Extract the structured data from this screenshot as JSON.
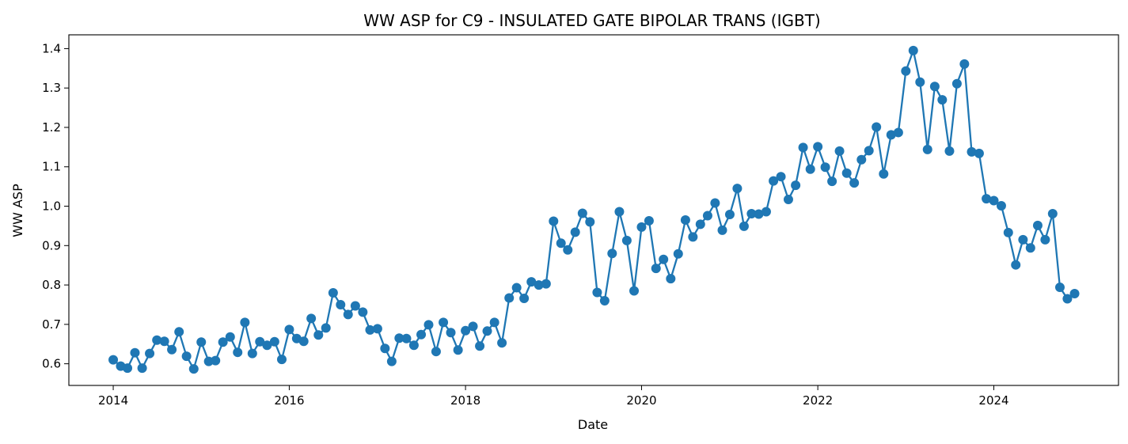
{
  "chart_data": {
    "type": "line",
    "title": "WW ASP for C9 - INSULATED GATE BIPOLAR TRANS (IGBT)",
    "xlabel": "Date",
    "ylabel": "WW ASP",
    "xlim": [
      "2013-07-01",
      "2025-06-01"
    ],
    "ylim": [
      0.545,
      1.435
    ],
    "x_ticks": [
      "2014",
      "2016",
      "2018",
      "2020",
      "2022",
      "2024"
    ],
    "y_ticks": [
      "0.6",
      "0.7",
      "0.8",
      "0.9",
      "1.0",
      "1.1",
      "1.2",
      "1.3",
      "1.4"
    ],
    "grid": false,
    "marker": "circle",
    "color": "#1f77b4",
    "series": [
      {
        "x": [
          "2014-01",
          "2014-02",
          "2014-03",
          "2014-04",
          "2014-05",
          "2014-06",
          "2014-07",
          "2014-08",
          "2014-09",
          "2014-10",
          "2014-11",
          "2014-12",
          "2015-01",
          "2015-02",
          "2015-03",
          "2015-04",
          "2015-05",
          "2015-06",
          "2015-07",
          "2015-08",
          "2015-09",
          "2015-10",
          "2015-11",
          "2015-12",
          "2016-01",
          "2016-02",
          "2016-03",
          "2016-04",
          "2016-05",
          "2016-06",
          "2016-07",
          "2016-08",
          "2016-09",
          "2016-10",
          "2016-11",
          "2016-12",
          "2017-01",
          "2017-02",
          "2017-03",
          "2017-04",
          "2017-05",
          "2017-06",
          "2017-07",
          "2017-08",
          "2017-09",
          "2017-10",
          "2017-11",
          "2017-12",
          "2018-01",
          "2018-02",
          "2018-03",
          "2018-04",
          "2018-05",
          "2018-06",
          "2018-07",
          "2018-08",
          "2018-09",
          "2018-10",
          "2018-11",
          "2018-12",
          "2019-01",
          "2019-02",
          "2019-03",
          "2019-04",
          "2019-05",
          "2019-06",
          "2019-07",
          "2019-08",
          "2019-09",
          "2019-10",
          "2019-11",
          "2019-12",
          "2020-01",
          "2020-02",
          "2020-03",
          "2020-04",
          "2020-05",
          "2020-06",
          "2020-07",
          "2020-08",
          "2020-09",
          "2020-10",
          "2020-11",
          "2020-12",
          "2021-01",
          "2021-02",
          "2021-03",
          "2021-04",
          "2021-05",
          "2021-06",
          "2021-07",
          "2021-08",
          "2021-09",
          "2021-10",
          "2021-11",
          "2021-12",
          "2022-01",
          "2022-02",
          "2022-03",
          "2022-04",
          "2022-05",
          "2022-06",
          "2022-07",
          "2022-08",
          "2022-09",
          "2022-10",
          "2022-11",
          "2022-12",
          "2023-01",
          "2023-02",
          "2023-03",
          "2023-04",
          "2023-05",
          "2023-06",
          "2023-07",
          "2023-08",
          "2023-09",
          "2023-10",
          "2023-11",
          "2023-12",
          "2024-01",
          "2024-02",
          "2024-03",
          "2024-04",
          "2024-05",
          "2024-06",
          "2024-07",
          "2024-08",
          "2024-09",
          "2024-10",
          "2024-11",
          "2024-12"
        ],
        "values": [
          0.61,
          0.594,
          0.589,
          0.628,
          0.589,
          0.626,
          0.66,
          0.657,
          0.636,
          0.681,
          0.619,
          0.587,
          0.655,
          0.606,
          0.608,
          0.655,
          0.668,
          0.629,
          0.705,
          0.626,
          0.656,
          0.647,
          0.656,
          0.611,
          0.687,
          0.664,
          0.657,
          0.715,
          0.673,
          0.691,
          0.78,
          0.75,
          0.725,
          0.747,
          0.731,
          0.686,
          0.689,
          0.639,
          0.606,
          0.665,
          0.664,
          0.647,
          0.674,
          0.699,
          0.631,
          0.705,
          0.679,
          0.635,
          0.684,
          0.695,
          0.645,
          0.683,
          0.705,
          0.653,
          0.767,
          0.793,
          0.766,
          0.808,
          0.8,
          0.803,
          0.962,
          0.906,
          0.889,
          0.934,
          0.982,
          0.96,
          0.781,
          0.76,
          0.88,
          0.986,
          0.913,
          0.785,
          0.947,
          0.963,
          0.842,
          0.865,
          0.816,
          0.879,
          0.965,
          0.922,
          0.954,
          0.976,
          1.008,
          0.939,
          0.979,
          1.045,
          0.949,
          0.981,
          0.98,
          0.986,
          1.064,
          1.075,
          1.017,
          1.053,
          1.149,
          1.094,
          1.151,
          1.099,
          1.063,
          1.14,
          1.084,
          1.059,
          1.118,
          1.141,
          1.201,
          1.082,
          1.181,
          1.187,
          1.343,
          1.395,
          1.315,
          1.144,
          1.304,
          1.27,
          1.14,
          1.311,
          1.361,
          1.138,
          1.134,
          1.019,
          1.014,
          1.001,
          0.933,
          0.851,
          0.915,
          0.894,
          0.951,
          0.915,
          0.981,
          0.794,
          0.765,
          0.778
        ]
      }
    ]
  }
}
